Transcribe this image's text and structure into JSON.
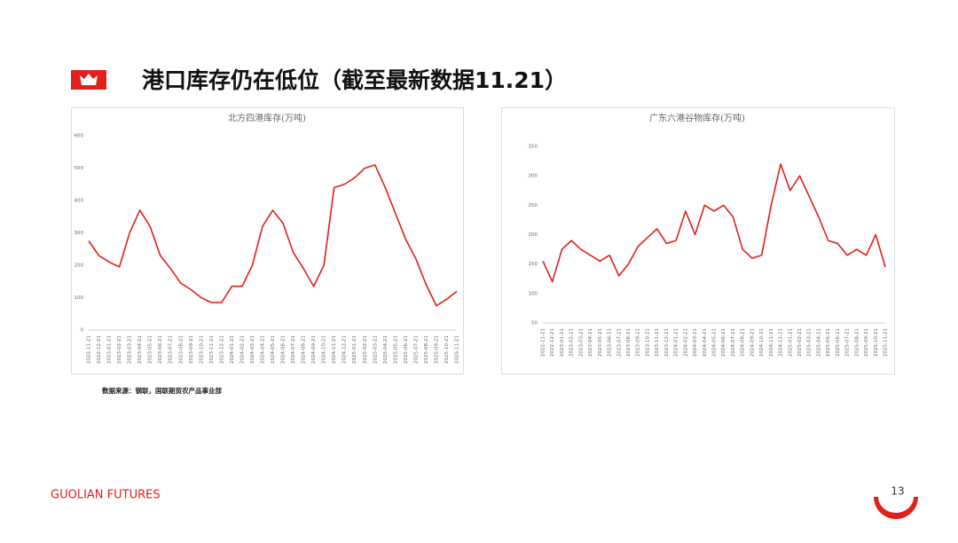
{
  "header": {
    "title": "港口库存仍在低位（截至最新数据11.21）"
  },
  "chart_data": [
    {
      "type": "line",
      "title": "北方四港库存(万吨)",
      "color": "#e0201b",
      "grid": false,
      "categories": [
        "2022-11-21",
        "2022-12-21",
        "2023-01-21",
        "2023-02-21",
        "2023-03-21",
        "2023-04-21",
        "2023-05-21",
        "2023-06-21",
        "2023-07-21",
        "2023-08-21",
        "2023-09-21",
        "2023-10-21",
        "2023-11-21",
        "2023-12-21",
        "2024-01-21",
        "2024-02-21",
        "2024-03-21",
        "2024-04-21",
        "2024-05-21",
        "2024-06-21",
        "2024-07-21",
        "2024-08-21",
        "2024-09-21",
        "2024-10-21",
        "2024-11-21",
        "2024-12-21",
        "2025-01-21",
        "2025-02-21",
        "2025-03-21",
        "2025-04-21",
        "2025-05-21",
        "2025-06-21",
        "2025-07-21",
        "2025-08-21",
        "2025-09-21",
        "2025-10-21",
        "2025-11-21"
      ],
      "values": [
        275,
        230,
        210,
        195,
        300,
        370,
        320,
        230,
        190,
        145,
        125,
        100,
        85,
        85,
        135,
        135,
        200,
        320,
        370,
        330,
        240,
        190,
        135,
        200,
        440,
        450,
        470,
        500,
        510,
        440,
        360,
        280,
        220,
        140,
        75,
        95,
        120
      ],
      "ylim": [
        0,
        600
      ],
      "yticks": [
        0,
        100,
        200,
        300,
        400,
        500,
        600
      ]
    },
    {
      "type": "line",
      "title": "广东六港谷物库存(万吨)",
      "color": "#e0201b",
      "grid": false,
      "categories": [
        "2022-11-21",
        "2022-12-21",
        "2023-01-21",
        "2023-02-21",
        "2023-03-21",
        "2023-04-21",
        "2023-05-21",
        "2023-06-21",
        "2023-07-21",
        "2023-08-21",
        "2023-09-21",
        "2023-10-21",
        "2023-11-21",
        "2023-12-21",
        "2024-01-21",
        "2024-02-21",
        "2024-03-21",
        "2024-04-21",
        "2024-05-21",
        "2024-06-21",
        "2024-07-21",
        "2024-08-21",
        "2024-09-21",
        "2024-10-21",
        "2024-11-21",
        "2024-12-21",
        "2025-01-21",
        "2025-02-21",
        "2025-03-21",
        "2025-04-21",
        "2025-05-21",
        "2025-06-21",
        "2025-07-21",
        "2025-08-21",
        "2025-09-21",
        "2025-10-21",
        "2025-11-21"
      ],
      "values": [
        155,
        120,
        175,
        190,
        175,
        165,
        155,
        165,
        130,
        150,
        180,
        195,
        210,
        185,
        190,
        240,
        200,
        250,
        240,
        250,
        230,
        175,
        160,
        165,
        250,
        320,
        275,
        300,
        265,
        230,
        190,
        185,
        165,
        175,
        165,
        200,
        145
      ],
      "ylim": [
        50,
        350
      ],
      "yticks": [
        50,
        100,
        150,
        200,
        250,
        300,
        350
      ]
    }
  ],
  "source": "数据来源：钢联，国联期货农产品事业部",
  "footer": {
    "brand": "GUOLIAN FUTURES",
    "page": "13"
  }
}
